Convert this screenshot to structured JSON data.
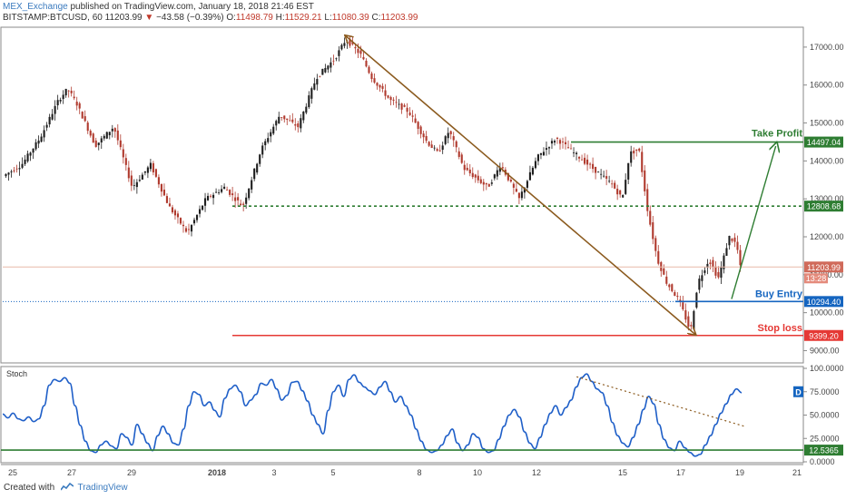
{
  "header": {
    "author": "MEX_Exchange",
    "published": "published on TradingView.com, January 18, 2018 21:46 EST",
    "symbol": "BITSTAMP:BTCUSD, 60",
    "last": "11203.99",
    "change": "−43.58 (−0.39%)",
    "o_label": "O:",
    "o_value": "11498.79",
    "h_label": "H:",
    "h_value": "11529.21",
    "l_label": "L:",
    "l_value": "11080.39",
    "c_label": "C:",
    "c_value": "11203.99"
  },
  "footer": {
    "created": "Created with",
    "brand": "TradingView"
  },
  "colors": {
    "up": "#1f1f1f",
    "down": "#b03a2e",
    "green": "#2e7d32",
    "blue": "#1565c0",
    "red": "#e53935",
    "brown": "#8b5a1e",
    "stoch": "#1f5fc8"
  },
  "chart_data": [
    {
      "type": "candlestick",
      "panel": "price",
      "x_axis": {
        "ticks": [
          "25",
          "27",
          "29",
          "2018",
          "3",
          "5",
          "8",
          "10",
          "12",
          "15",
          "17",
          "19",
          "21"
        ]
      },
      "y_axis": {
        "range": [
          8700,
          17500
        ],
        "ticks": [
          "17000.00",
          "16000.00",
          "15000.00",
          "14000.00",
          "13000.00",
          "12000.00",
          "11000.00",
          "10000.00",
          "9000.00"
        ]
      },
      "series_path": [
        [
          0,
          13600
        ],
        [
          1,
          13900
        ],
        [
          2,
          14600
        ],
        [
          3,
          15600
        ],
        [
          3.5,
          15900
        ],
        [
          4,
          15500
        ],
        [
          5,
          14400
        ],
        [
          6,
          14900
        ],
        [
          7,
          13300
        ],
        [
          8,
          13900
        ],
        [
          9,
          12800
        ],
        [
          10,
          12100
        ],
        [
          11,
          13000
        ],
        [
          12,
          13300
        ],
        [
          13,
          12800
        ],
        [
          14,
          14300
        ],
        [
          15,
          15200
        ],
        [
          16,
          14900
        ],
        [
          17,
          16200
        ],
        [
          18,
          16700
        ],
        [
          18.6,
          17200
        ],
        [
          19.4,
          16800
        ],
        [
          20,
          16200
        ],
        [
          21,
          15600
        ],
        [
          22,
          15300
        ],
        [
          23,
          14500
        ],
        [
          23.6,
          14200
        ],
        [
          24.2,
          14800
        ],
        [
          25,
          13800
        ],
        [
          26.3,
          13300
        ],
        [
          27,
          13900
        ],
        [
          28,
          13000
        ],
        [
          29,
          14100
        ],
        [
          30,
          14600
        ],
        [
          31,
          14200
        ],
        [
          32,
          13800
        ],
        [
          33,
          13400
        ],
        [
          33.6,
          13000
        ],
        [
          34,
          14200
        ],
        [
          34.5,
          14300
        ],
        [
          35,
          12600
        ],
        [
          35.5,
          11400
        ],
        [
          36,
          10800
        ],
        [
          36.7,
          10300
        ],
        [
          37.3,
          9500
        ],
        [
          37.7,
          10800
        ],
        [
          38.3,
          11400
        ],
        [
          38.8,
          10900
        ],
        [
          39.4,
          12000
        ],
        [
          39.8,
          11800
        ],
        [
          40,
          11200
        ]
      ],
      "annotations": [
        {
          "label": "Take Profit",
          "value": "14497.04",
          "color": "green",
          "style": "solid"
        },
        {
          "label": "",
          "value": "12808.68",
          "color": "green",
          "style": "dashed"
        },
        {
          "label": "Buy Entry",
          "value": "10294.40",
          "color": "blue",
          "style": "solid"
        },
        {
          "label": "Stop loss",
          "value": "9399.20",
          "color": "red",
          "style": "solid"
        },
        {
          "label": "",
          "value": "11203.99",
          "color": "down",
          "style": "last-price",
          "sub": "13:28"
        }
      ],
      "arrows": [
        {
          "from": [
            18.5,
            17300
          ],
          "to": [
            37.5,
            9420
          ],
          "color": "brown"
        },
        {
          "from": [
            36.5,
            10360
          ],
          "to": [
            38.7,
            14390
          ],
          "color": "green"
        }
      ]
    },
    {
      "type": "line",
      "panel": "stochastic",
      "name": "Stoch",
      "y_axis": {
        "range": [
          0,
          100
        ],
        "ticks": [
          "100.0000",
          "75.0000",
          "50.0000",
          "25.0000",
          "0.0000"
        ]
      },
      "y_range": [
        0,
        100
      ],
      "values": [
        51,
        47,
        52,
        46,
        44,
        48,
        43,
        46,
        60,
        82,
        88,
        86,
        90,
        84,
        60,
        39,
        22,
        12,
        10,
        18,
        22,
        17,
        14,
        30,
        26,
        18,
        40,
        30,
        20,
        12,
        28,
        38,
        30,
        20,
        18,
        35,
        60,
        75,
        72,
        60,
        64,
        55,
        48,
        68,
        78,
        82,
        75,
        60,
        66,
        72,
        84,
        82,
        88,
        78,
        66,
        71,
        85,
        86,
        76,
        65,
        50,
        40,
        30,
        55,
        75,
        82,
        70,
        88,
        93,
        85,
        80,
        76,
        72,
        80,
        86,
        75,
        64,
        70,
        60,
        50,
        35,
        22,
        13,
        10,
        12,
        18,
        28,
        35,
        20,
        12,
        18,
        30,
        26,
        14,
        10,
        12,
        24,
        38,
        50,
        56,
        48,
        32,
        20,
        14,
        26,
        40,
        52,
        60,
        50,
        58,
        66,
        80,
        90,
        94,
        86,
        78,
        74,
        60,
        42,
        28,
        20,
        16,
        26,
        40,
        56,
        70,
        62,
        40,
        24,
        15,
        12,
        22,
        15,
        10,
        6,
        8,
        18,
        28,
        40,
        52,
        62,
        72,
        78,
        74
      ],
      "annotations": [
        {
          "label": "",
          "value": "12.5365",
          "color": "green",
          "style": "solid"
        },
        {
          "label": "D",
          "value": "",
          "color": "blue",
          "style": "badge"
        }
      ],
      "trendline": {
        "from": [
          0.73,
          91
        ],
        "to": [
          0.93,
          38
        ],
        "color": "brown",
        "style": "dotted"
      }
    }
  ]
}
